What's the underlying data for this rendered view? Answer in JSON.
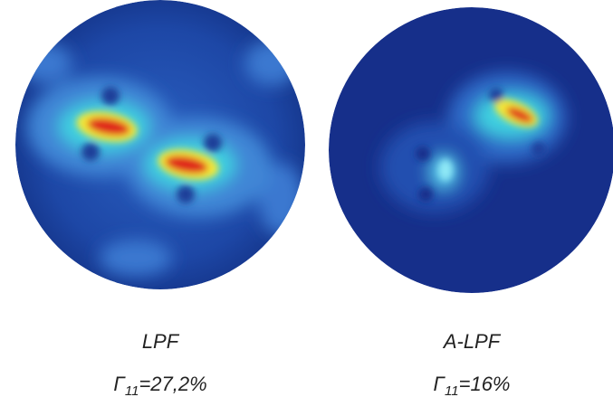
{
  "panels": [
    {
      "label": "LPF",
      "gamma_symbol": "Γ",
      "gamma_subscript": "11",
      "gamma_value": "=27,2%"
    },
    {
      "label": "A-LPF",
      "gamma_symbol": "Γ",
      "gamma_subscript": "11",
      "gamma_value": "=16%"
    }
  ]
}
